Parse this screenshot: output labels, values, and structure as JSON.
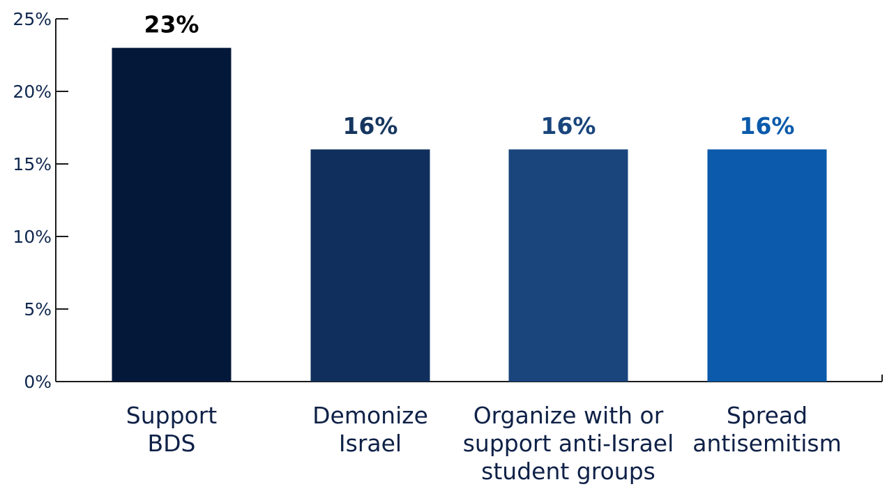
{
  "chart_data": {
    "type": "bar",
    "categories": [
      [
        "Support",
        "BDS"
      ],
      [
        "Demonize",
        "Israel"
      ],
      [
        "Organize with or",
        "support anti-Israel",
        "student groups"
      ],
      [
        "Spread",
        "antisemitism"
      ]
    ],
    "values": [
      23,
      16,
      16,
      16
    ],
    "data_labels": [
      "23%",
      "16%",
      "16%",
      "16%"
    ],
    "bar_colors": [
      "#04183a",
      "#102f5c",
      "#1a457c",
      "#0b5aab"
    ],
    "data_label_colors": [
      "#000000",
      "#16365f",
      "#1a457c",
      "#0b5aab"
    ],
    "ylim": [
      0,
      25
    ],
    "y_ticks": [
      0,
      5,
      10,
      15,
      20,
      25
    ],
    "y_tick_labels": [
      "0%",
      "5%",
      "10%",
      "15%",
      "20%",
      "25%"
    ],
    "title": "",
    "xlabel": "",
    "ylabel": "",
    "grid": false,
    "legend": "none",
    "axis_color": "#1a1a1a"
  }
}
